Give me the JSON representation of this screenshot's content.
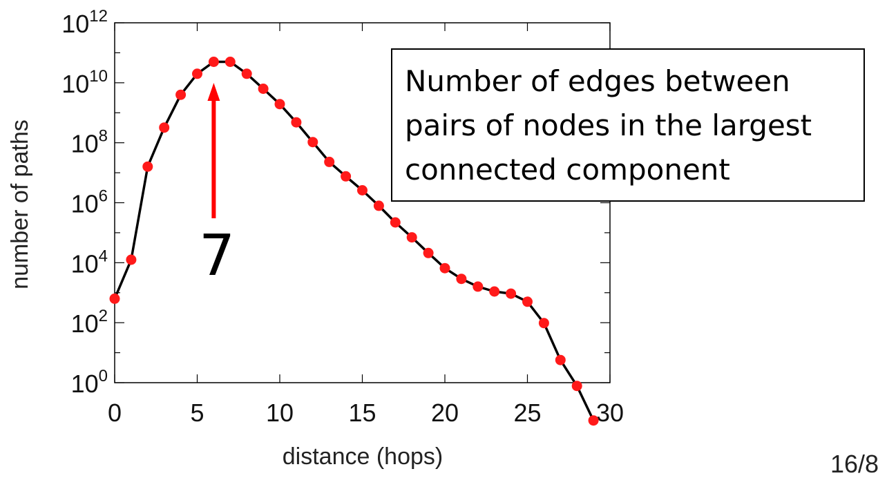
{
  "chart_data": {
    "type": "line",
    "xlabel": "distance (hops)",
    "ylabel": "number of paths",
    "xlim": [
      0,
      30
    ],
    "ylim_log10": [
      0,
      12
    ],
    "y_scale": "log",
    "x_ticks": [
      "0",
      "5",
      "10",
      "15",
      "20",
      "25",
      "30"
    ],
    "y_tick_base": "10",
    "y_tick_exponents": [
      "0",
      "2",
      "4",
      "6",
      "8",
      "10",
      "12"
    ],
    "grid": false,
    "line_color": "#000000",
    "marker_color": "#ff1a1a",
    "series": [
      {
        "x": [
          0,
          1,
          2,
          3,
          4,
          5,
          6,
          7,
          8,
          9,
          10,
          11,
          12,
          13,
          14,
          15,
          16,
          17,
          18,
          19,
          20,
          21,
          22,
          23,
          24,
          25,
          26,
          27,
          28,
          29
        ],
        "y": [
          631,
          12589,
          16000000.0,
          320000000.0,
          3980000000.0,
          20000000000.0,
          50000000000.0,
          50000000000.0,
          20000000000.0,
          6300000000.0,
          1950000000.0,
          480000000.0,
          105000000.0,
          23000000.0,
          7600000.0,
          2600000.0,
          790000.0,
          220000.0,
          70000.0,
          21000.0,
          6600.0,
          2900.0,
          1600.0,
          1100.0,
          930,
          500,
          97,
          5.7,
          0.78,
          0.055
        ]
      }
    ]
  },
  "annotation": {
    "lines": [
      "Number of edges between",
      "pairs of nodes in the largest",
      "connected component"
    ]
  },
  "peak_marker": {
    "label": "7",
    "x": 6,
    "arrow_color": "#ff0000"
  },
  "page_number": "16/8"
}
